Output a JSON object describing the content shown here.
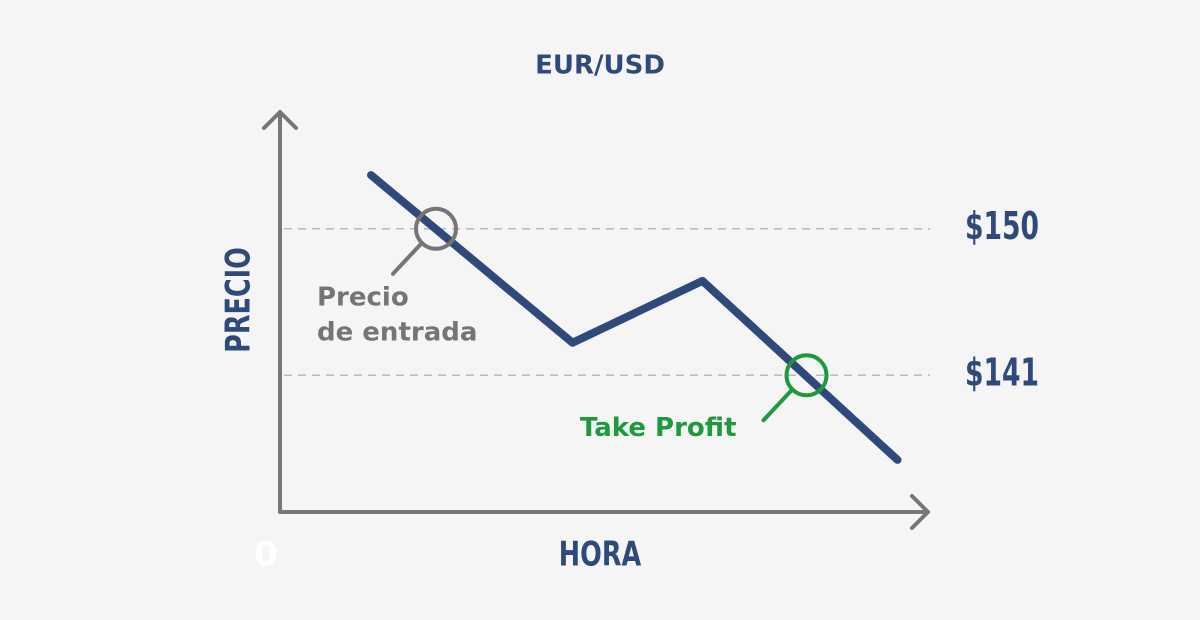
{
  "chart_data": {
    "type": "line",
    "title": "EUR/USD",
    "x_label": "HORA",
    "y_label": "PRECIO",
    "x": [
      1.4,
      4.5,
      6.5,
      9.5
    ],
    "values": [
      153.3,
      143.0,
      146.8,
      135.8
    ],
    "color": "#2f4a7a",
    "xlim": [
      0,
      10
    ],
    "xticks": [
      0
    ],
    "ylim": [
      132.6,
      157.3
    ],
    "yticks": [
      {
        "value": 150,
        "label": "$150"
      },
      {
        "value": 141,
        "label": "$141"
      }
    ],
    "grid": true,
    "annotations": [
      {
        "lines": [
          "Precio",
          "de entrada"
        ],
        "x": 2.4,
        "y": 150,
        "color": "#757575"
      },
      {
        "lines": [
          "Take Profit"
        ],
        "x": 8.1,
        "y": 141,
        "color": "#1e9a3e"
      }
    ]
  }
}
